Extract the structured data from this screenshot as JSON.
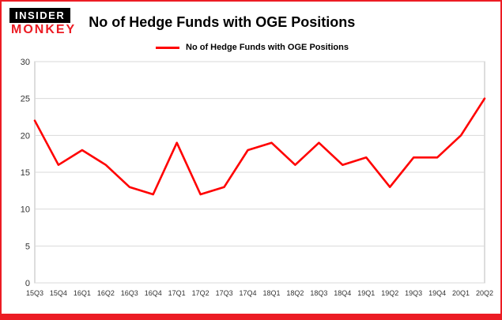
{
  "header": {
    "logo_top": "INSIDER",
    "logo_bottom": "MONKEY",
    "title": "No of Hedge Funds with OGE Positions"
  },
  "legend": {
    "label": "No of Hedge Funds with OGE Positions",
    "color": "#ff0000"
  },
  "chart_data": {
    "type": "line",
    "title": "No of Hedge Funds with OGE Positions",
    "categories": [
      "15Q3",
      "15Q4",
      "16Q1",
      "16Q2",
      "16Q3",
      "16Q4",
      "17Q1",
      "17Q2",
      "17Q3",
      "17Q4",
      "18Q1",
      "18Q2",
      "18Q3",
      "18Q4",
      "19Q1",
      "19Q2",
      "19Q3",
      "19Q4",
      "20Q1",
      "20Q2"
    ],
    "values": [
      22,
      16,
      18,
      16,
      13,
      12,
      19,
      12,
      13,
      18,
      19,
      16,
      19,
      16,
      17,
      13,
      17,
      17,
      20,
      25
    ],
    "xlabel": "",
    "ylabel": "",
    "ylim": [
      0,
      30
    ],
    "yticks": [
      0,
      5,
      10,
      15,
      20,
      25,
      30
    ],
    "grid": true,
    "legend_position": "top",
    "line_color": "#ff0000",
    "grid_color": "#d9d9d9",
    "axis_color": "#bbbbbb"
  }
}
